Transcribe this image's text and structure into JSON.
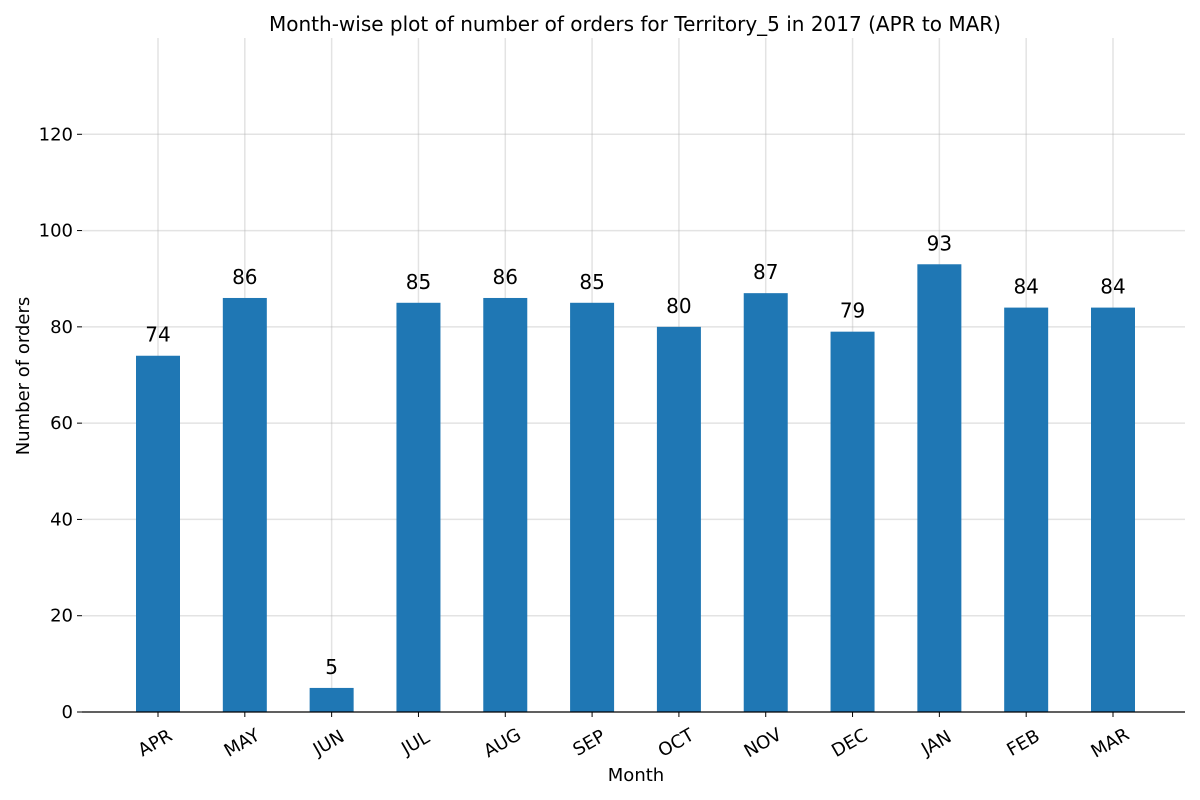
{
  "chart_data": {
    "type": "bar",
    "title": "Month-wise plot of number of orders for Territory_5 in 2017 (APR to MAR)",
    "xlabel": "Month",
    "ylabel": "Number of orders",
    "categories": [
      "APR",
      "MAY",
      "JUN",
      "JUL",
      "AUG",
      "SEP",
      "OCT",
      "NOV",
      "DEC",
      "JAN",
      "FEB",
      "MAR"
    ],
    "values": [
      74,
      86,
      5,
      85,
      86,
      85,
      80,
      87,
      79,
      93,
      84,
      84
    ],
    "ylim": [
      0,
      140
    ],
    "yticks": [
      0,
      20,
      40,
      60,
      80,
      100,
      120
    ],
    "grid": true,
    "bar_color": "#1f77b4"
  }
}
